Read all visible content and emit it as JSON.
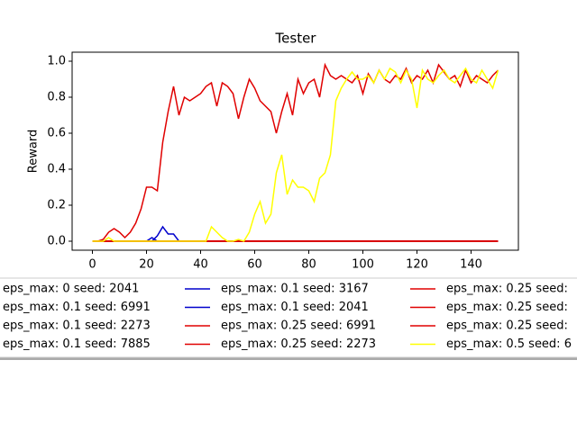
{
  "chart_data": {
    "type": "line",
    "title": "Tester",
    "y_label": "Reward",
    "x": [
      0,
      2,
      4,
      6,
      8,
      10,
      12,
      14,
      16,
      18,
      20,
      22,
      24,
      26,
      28,
      30,
      32,
      34,
      36,
      38,
      40,
      42,
      44,
      46,
      48,
      50,
      52,
      54,
      56,
      58,
      60,
      62,
      64,
      66,
      68,
      70,
      72,
      74,
      76,
      78,
      80,
      82,
      84,
      86,
      88,
      90,
      92,
      94,
      96,
      98,
      100,
      102,
      104,
      106,
      108,
      110,
      112,
      114,
      116,
      118,
      120,
      122,
      124,
      126,
      128,
      130,
      132,
      134,
      136,
      138,
      140,
      142,
      144,
      146,
      148,
      150
    ],
    "xlim": [
      -7.5,
      157.5
    ],
    "ylim": [
      -0.05,
      1.05
    ],
    "xticks": [
      0,
      20,
      40,
      60,
      80,
      100,
      120,
      140
    ],
    "yticks": [
      {
        "value": 0,
        "label": "0.0"
      },
      0.2,
      0.4,
      0.6,
      0.8,
      {
        "value": 1,
        "label": "1.0"
      }
    ],
    "series": [
      {
        "name": "eps_max: 0 seed: 2041",
        "color": "#000000",
        "values": [
          0,
          0,
          0,
          0,
          0,
          0,
          0,
          0,
          0,
          0,
          0,
          0,
          0,
          0,
          0,
          0,
          0,
          0,
          0,
          0,
          0,
          0,
          0,
          0,
          0,
          0,
          0,
          0,
          0,
          0,
          0,
          0,
          0,
          0,
          0,
          0,
          0,
          0,
          0,
          0,
          0,
          0,
          0,
          0,
          0,
          0,
          0,
          0,
          0,
          0,
          0,
          0,
          0,
          0,
          0,
          0,
          0,
          0,
          0,
          0,
          0,
          0,
          0,
          0,
          0,
          0,
          0,
          0,
          0,
          0,
          0,
          0,
          0,
          0,
          0,
          0
        ]
      },
      {
        "name": "eps_max: 0.1 seed: 6991",
        "color": "#0000cc",
        "values": [
          0,
          0,
          0,
          0,
          0,
          0,
          0,
          0,
          0,
          0,
          0,
          0,
          0,
          0,
          0,
          0,
          0,
          0,
          0,
          0,
          0,
          0,
          0,
          0,
          0,
          0,
          0,
          0,
          0,
          0,
          0,
          0,
          0,
          0,
          0,
          0,
          0,
          0,
          0,
          0,
          0,
          0,
          0,
          0,
          0,
          0,
          0,
          0,
          0,
          0,
          0,
          0,
          0,
          0,
          0,
          0,
          0,
          0,
          0,
          0,
          0,
          0,
          0,
          0,
          0,
          0,
          0,
          0,
          0,
          0,
          0,
          0,
          0,
          0,
          0,
          0
        ]
      },
      {
        "name": "eps_max: 0.1 seed: 2273",
        "color": "#0000cc",
        "values": [
          0,
          0,
          0,
          0,
          0,
          0,
          0,
          0,
          0,
          0,
          0,
          0,
          0,
          0,
          0,
          0,
          0,
          0,
          0,
          0,
          0,
          0,
          0,
          0,
          0,
          0,
          0,
          0,
          0,
          0,
          0,
          0,
          0,
          0,
          0,
          0,
          0,
          0,
          0,
          0,
          0,
          0,
          0,
          0,
          0,
          0,
          0,
          0,
          0,
          0,
          0,
          0,
          0,
          0,
          0,
          0,
          0,
          0,
          0,
          0,
          0,
          0,
          0,
          0,
          0,
          0,
          0,
          0,
          0,
          0,
          0,
          0,
          0,
          0,
          0,
          0
        ]
      },
      {
        "name": "eps_max: 0.1 seed: 7885",
        "color": "#0000cc",
        "values": [
          0,
          0,
          0,
          0,
          0,
          0,
          0,
          0,
          0,
          0,
          0,
          0,
          0,
          0,
          0,
          0,
          0,
          0,
          0,
          0,
          0,
          0,
          0,
          0,
          0,
          0,
          0,
          0,
          0,
          0,
          0,
          0,
          0,
          0,
          0,
          0,
          0,
          0,
          0,
          0,
          0,
          0,
          0,
          0,
          0,
          0,
          0,
          0,
          0,
          0,
          0,
          0,
          0,
          0,
          0,
          0,
          0,
          0,
          0,
          0,
          0,
          0,
          0,
          0,
          0,
          0,
          0,
          0,
          0,
          0,
          0,
          0,
          0,
          0,
          0,
          0
        ]
      },
      {
        "name": "eps_max: 0.1 seed: 3167",
        "color": "#0000cc",
        "values": [
          0,
          0,
          0,
          0,
          0,
          0,
          0,
          0,
          0,
          0,
          0,
          0,
          0.03,
          0.08,
          0.04,
          0.04,
          0,
          0,
          0,
          0,
          0,
          0,
          0,
          0,
          0,
          0,
          0,
          0,
          0,
          0,
          0,
          0,
          0,
          0,
          0,
          0,
          0,
          0,
          0,
          0,
          0,
          0,
          0,
          0,
          0,
          0,
          0,
          0,
          0,
          0,
          0,
          0,
          0,
          0,
          0,
          0,
          0,
          0,
          0,
          0,
          0,
          0,
          0,
          0,
          0,
          0,
          0,
          0,
          0,
          0,
          0,
          0,
          0,
          0,
          0,
          0
        ]
      },
      {
        "name": "eps_max: 0.1 seed: 2041",
        "color": "#0000cc",
        "values": [
          0,
          0,
          0,
          0,
          0,
          0,
          0,
          0,
          0,
          0,
          0,
          0.02,
          0,
          0,
          0,
          0,
          0,
          0,
          0,
          0,
          0,
          0,
          0,
          0,
          0,
          0,
          0,
          0,
          0,
          0,
          0,
          0,
          0,
          0,
          0,
          0,
          0,
          0,
          0,
          0,
          0,
          0,
          0,
          0,
          0,
          0,
          0,
          0,
          0,
          0,
          0,
          0,
          0,
          0,
          0,
          0,
          0,
          0,
          0,
          0,
          0,
          0,
          0,
          0,
          0,
          0,
          0,
          0,
          0,
          0,
          0,
          0,
          0,
          0,
          0,
          0
        ]
      },
      {
        "name": "eps_max: 0.25 seed: 6991",
        "color": "#e00000",
        "values": [
          0,
          0,
          0.01,
          0.05,
          0.07,
          0.05,
          0.02,
          0.05,
          0.1,
          0.18,
          0.3,
          0.3,
          0.28,
          0.55,
          0.72,
          0.86,
          0.7,
          0.8,
          0.78,
          0.8,
          0.82,
          0.86,
          0.88,
          0.75,
          0.88,
          0.86,
          0.82,
          0.68,
          0.8,
          0.9,
          0.85,
          0.78,
          0.75,
          0.72,
          0.6,
          0.72,
          0.82,
          0.7,
          0.9,
          0.82,
          0.88,
          0.9,
          0.8,
          0.98,
          0.92,
          0.9,
          0.92,
          0.9,
          0.88,
          0.92,
          0.82,
          0.93,
          0.88,
          0.95,
          0.9,
          0.88,
          0.92,
          0.9,
          0.96,
          0.88,
          0.92,
          0.9,
          0.95,
          0.88,
          0.98,
          0.94,
          0.9,
          0.92,
          0.86,
          0.95,
          0.88,
          0.92,
          0.9,
          0.88,
          0.92,
          0.95
        ]
      },
      {
        "name": "eps_max: 0.25 seed: 2273",
        "color": "#e00000",
        "values": [
          0,
          0,
          0,
          0,
          0,
          0,
          0,
          0,
          0,
          0,
          0,
          0,
          0,
          0,
          0,
          0,
          0,
          0,
          0,
          0,
          0,
          0,
          0,
          0,
          0,
          0,
          0,
          0,
          0,
          0,
          0,
          0,
          0,
          0,
          0,
          0,
          0,
          0,
          0,
          0,
          0,
          0,
          0,
          0,
          0,
          0,
          0,
          0,
          0,
          0,
          0,
          0,
          0,
          0,
          0,
          0,
          0,
          0,
          0,
          0,
          0,
          0,
          0,
          0,
          0,
          0,
          0,
          0,
          0,
          0,
          0,
          0,
          0,
          0,
          0,
          0
        ]
      },
      {
        "name": "eps_max: 0.25 seed:",
        "color": "#e00000",
        "values": [
          0,
          0,
          0,
          0,
          0,
          0,
          0,
          0,
          0,
          0,
          0,
          0,
          0,
          0,
          0,
          0,
          0,
          0,
          0,
          0,
          0,
          0,
          0,
          0,
          0,
          0,
          0,
          0,
          0,
          0,
          0,
          0,
          0,
          0,
          0,
          0,
          0,
          0,
          0,
          0,
          0,
          0,
          0,
          0,
          0,
          0,
          0,
          0,
          0,
          0,
          0,
          0,
          0,
          0,
          0,
          0,
          0,
          0,
          0,
          0,
          0,
          0,
          0,
          0,
          0,
          0,
          0,
          0,
          0,
          0,
          0,
          0,
          0,
          0,
          0,
          0
        ]
      },
      {
        "name": "eps_max: 0.25 seed:",
        "color": "#e00000",
        "values": [
          0,
          0,
          0,
          0,
          0,
          0,
          0,
          0,
          0,
          0,
          0,
          0,
          0,
          0,
          0,
          0,
          0,
          0,
          0,
          0,
          0,
          0,
          0,
          0,
          0,
          0,
          0,
          0,
          0,
          0,
          0,
          0,
          0,
          0,
          0,
          0,
          0,
          0,
          0,
          0,
          0,
          0,
          0,
          0,
          0,
          0,
          0,
          0,
          0,
          0,
          0,
          0,
          0,
          0,
          0,
          0,
          0,
          0,
          0,
          0,
          0,
          0,
          0,
          0,
          0,
          0,
          0,
          0,
          0,
          0,
          0,
          0,
          0,
          0,
          0,
          0
        ]
      },
      {
        "name": "eps_max: 0.25 seed:",
        "color": "#e00000",
        "values": [
          0,
          0,
          0,
          0,
          0,
          0,
          0,
          0,
          0,
          0,
          0,
          0,
          0,
          0,
          0,
          0,
          0,
          0,
          0,
          0,
          0,
          0,
          0,
          0,
          0,
          0,
          0,
          0,
          0,
          0,
          0,
          0,
          0,
          0,
          0,
          0,
          0,
          0,
          0,
          0,
          0,
          0,
          0,
          0,
          0,
          0,
          0,
          0,
          0,
          0,
          0,
          0,
          0,
          0,
          0,
          0,
          0,
          0,
          0,
          0,
          0,
          0,
          0,
          0,
          0,
          0,
          0,
          0,
          0,
          0,
          0,
          0,
          0,
          0,
          0,
          0
        ]
      },
      {
        "name": "eps_max: 0.5 seed: 6",
        "color": "#ffff00",
        "values": [
          0,
          0,
          0,
          0.02,
          0,
          0,
          0,
          0,
          0,
          0,
          0,
          0,
          0,
          0,
          0,
          0,
          0,
          0,
          0,
          0,
          0,
          0,
          0.08,
          0.05,
          0.02,
          0,
          0,
          0.01,
          0,
          0.05,
          0.15,
          0.22,
          0.1,
          0.15,
          0.38,
          0.48,
          0.26,
          0.34,
          0.3,
          0.3,
          0.28,
          0.22,
          0.35,
          0.38,
          0.48,
          0.78,
          0.85,
          0.9,
          0.94,
          0.9,
          0.9,
          0.92,
          0.88,
          0.95,
          0.9,
          0.96,
          0.94,
          0.88,
          0.95,
          0.9,
          0.74,
          0.95,
          0.9,
          0.88,
          0.92,
          0.95,
          0.9,
          0.88,
          0.92,
          0.96,
          0.9,
          0.88,
          0.95,
          0.9,
          0.85,
          0.95
        ]
      }
    ]
  }
}
